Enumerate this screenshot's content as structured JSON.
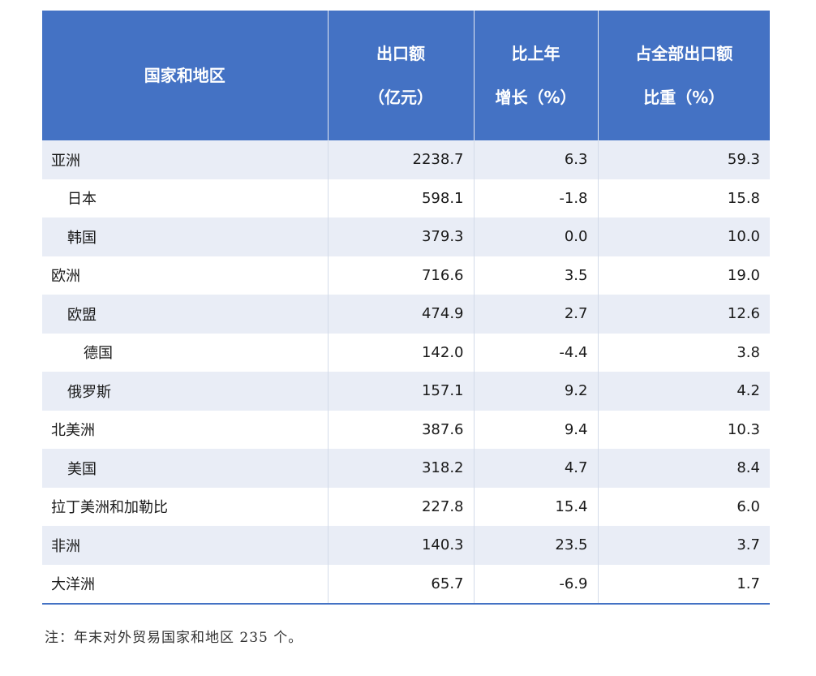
{
  "table": {
    "headers": [
      [
        "国家和地区"
      ],
      [
        "出口额",
        "（亿元）"
      ],
      [
        "比上年",
        "增长（%）"
      ],
      [
        "占全部出口额",
        "比重（%）"
      ]
    ],
    "rows": [
      {
        "name": "亚洲",
        "level": 0,
        "export": "2238.7",
        "growth": "6.3",
        "share": "59.3"
      },
      {
        "name": "日本",
        "level": 1,
        "export": "598.1",
        "growth": "-1.8",
        "share": "15.8"
      },
      {
        "name": "韩国",
        "level": 1,
        "export": "379.3",
        "growth": "0.0",
        "share": "10.0"
      },
      {
        "name": "欧洲",
        "level": 0,
        "export": "716.6",
        "growth": "3.5",
        "share": "19.0"
      },
      {
        "name": "欧盟",
        "level": 1,
        "export": "474.9",
        "growth": "2.7",
        "share": "12.6"
      },
      {
        "name": "德国",
        "level": 2,
        "export": "142.0",
        "growth": "-4.4",
        "share": "3.8"
      },
      {
        "name": "俄罗斯",
        "level": 1,
        "export": "157.1",
        "growth": "9.2",
        "share": "4.2"
      },
      {
        "name": "北美洲",
        "level": 0,
        "export": "387.6",
        "growth": "9.4",
        "share": "10.3"
      },
      {
        "name": "美国",
        "level": 1,
        "export": "318.2",
        "growth": "4.7",
        "share": "8.4"
      },
      {
        "name": "拉丁美洲和加勒比",
        "level": 0,
        "export": "227.8",
        "growth": "15.4",
        "share": "6.0"
      },
      {
        "name": "非洲",
        "level": 0,
        "export": "140.3",
        "growth": "23.5",
        "share": "3.7"
      },
      {
        "name": "大洋洲",
        "level": 0,
        "export": "65.7",
        "growth": "-6.9",
        "share": "1.7"
      }
    ]
  },
  "note": "注：年末对外贸易国家和地区 235 个。",
  "colors": {
    "header_bg": "#4472c4",
    "stripe": "#e9edf6",
    "header_text": "#ffffff"
  }
}
